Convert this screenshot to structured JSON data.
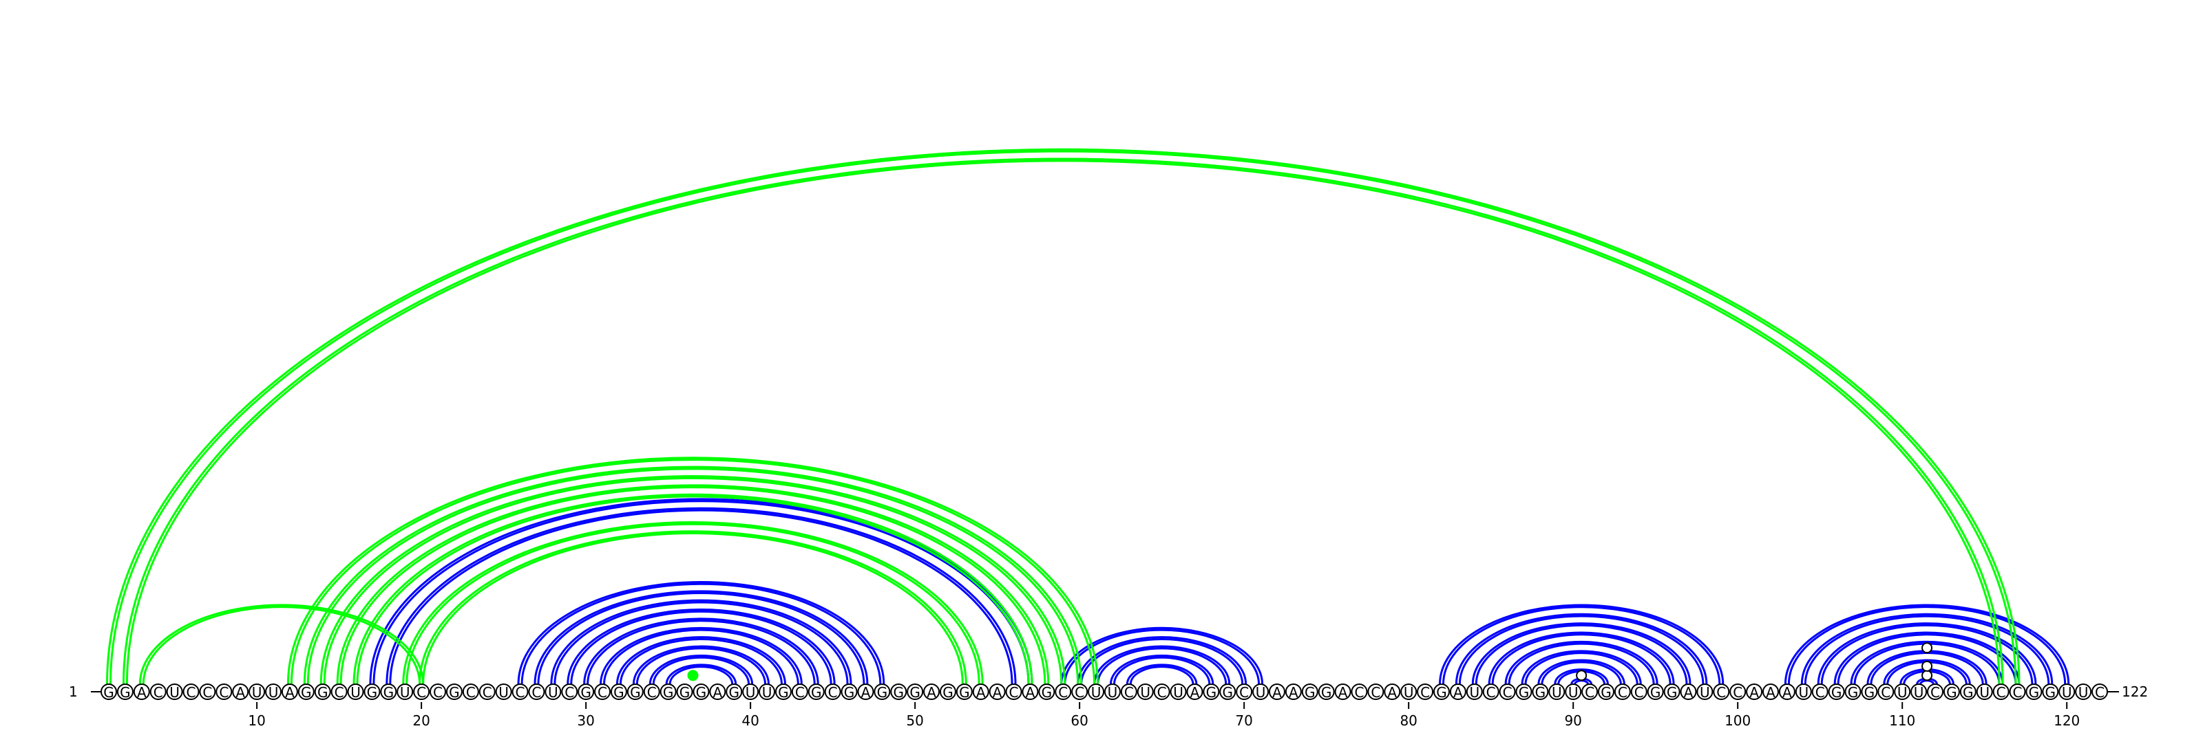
{
  "diagram": {
    "type": "rna-arc-diagram",
    "sequence": "GGACUCCCAUUAGGCUGGUCCGCCUCCUCGCGGCGGGAGUUGCGCGAGGGAGGAACAGCCUUCUCUAGGCUAAGGACCAUCGAUCCGGUUCGCCGGAUCCAAAUCGGGCUUCGGUCCGGUUC",
    "start_label": "1",
    "end_label": "122",
    "ticks": [
      10,
      20,
      30,
      40,
      50,
      60,
      70,
      80,
      90,
      100,
      110,
      120
    ],
    "colors": {
      "reference": "#0000ff",
      "predicted": "#00ff00",
      "text": "#000000"
    },
    "reference_pairs": [
      [
        17,
        57
      ],
      [
        18,
        56
      ],
      [
        26,
        48
      ],
      [
        27,
        47
      ],
      [
        28,
        46
      ],
      [
        29,
        45
      ],
      [
        30,
        44
      ],
      [
        31,
        43
      ],
      [
        32,
        42
      ],
      [
        33,
        41
      ],
      [
        34,
        40
      ],
      [
        35,
        39
      ],
      [
        59,
        71
      ],
      [
        60,
        70
      ],
      [
        61,
        69
      ],
      [
        62,
        68
      ],
      [
        63,
        67
      ],
      [
        82,
        99
      ],
      [
        83,
        98
      ],
      [
        84,
        97
      ],
      [
        85,
        96
      ],
      [
        86,
        95
      ],
      [
        87,
        94
      ],
      [
        88,
        93
      ],
      [
        89,
        92
      ],
      [
        90,
        91
      ],
      [
        103,
        120
      ],
      [
        104,
        119
      ],
      [
        105,
        118
      ],
      [
        106,
        117
      ],
      [
        107,
        116
      ],
      [
        108,
        115
      ],
      [
        109,
        114
      ],
      [
        110,
        113
      ],
      [
        111,
        112
      ]
    ],
    "predicted_pairs": [
      [
        1,
        117
      ],
      [
        2,
        116
      ],
      [
        3,
        20
      ],
      [
        12,
        61
      ],
      [
        13,
        60
      ],
      [
        14,
        59
      ],
      [
        15,
        58
      ],
      [
        16,
        57
      ],
      [
        19,
        54
      ],
      [
        20,
        53
      ]
    ],
    "markers": [
      {
        "pos": 36,
        "pair_partner": 37,
        "color": "#00ff00",
        "filled": true
      },
      {
        "pos": 111,
        "pair_partner": 112,
        "color": "#0000ff",
        "filled": false
      },
      {
        "pos": 110,
        "pair_partner": 113,
        "color": "#0000ff",
        "filled": false
      },
      {
        "pos": 108,
        "pair_partner": 115,
        "color": "#0000ff",
        "filled": false
      },
      {
        "pos": 90,
        "pair_partner": 91,
        "color": "#0000ff",
        "filled": false
      }
    ]
  }
}
